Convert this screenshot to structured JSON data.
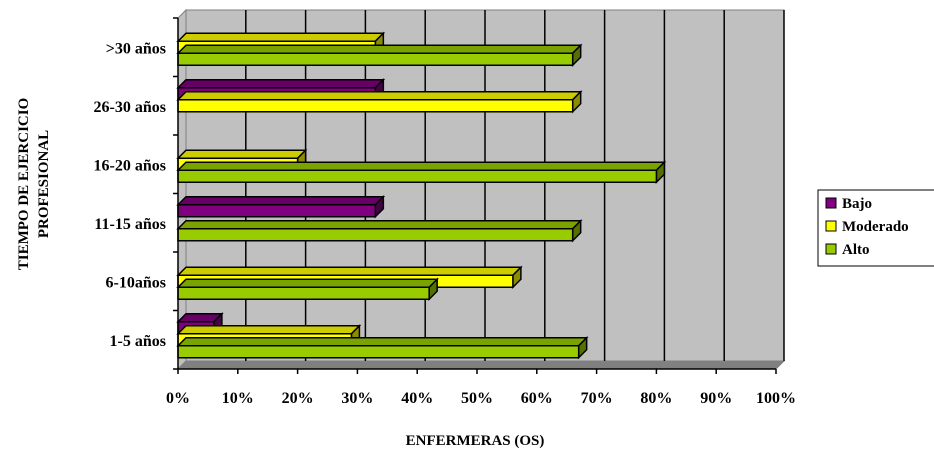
{
  "chart_data": {
    "type": "bar",
    "orientation": "horizontal",
    "three_d": true,
    "categories": [
      "1-5 años",
      "6-10años",
      "11-15 años",
      "16-20 años",
      "26-30 años",
      ">30 años"
    ],
    "series": [
      {
        "name": "Bajo",
        "color": "#800080",
        "values": [
          6,
          0,
          33,
          0,
          33,
          0
        ]
      },
      {
        "name": "Moderado",
        "color": "#ffff00",
        "values": [
          29,
          56,
          0,
          20,
          66,
          33
        ]
      },
      {
        "name": "Alto",
        "color": "#99cc00",
        "values": [
          67,
          42,
          66,
          80,
          0,
          66
        ]
      }
    ],
    "xlabel": "ENFERMERAS (OS)",
    "ylabel": [
      "TIEMPO DE EJERCICIO",
      "PROFESIONAL"
    ],
    "xlim": [
      0,
      100
    ],
    "x_tick_labels": [
      "0%",
      "10%",
      "20%",
      "30%",
      "40%",
      "50%",
      "60%",
      "70%",
      "80%",
      "90%",
      "100%"
    ],
    "grid": true,
    "legend_position": "right",
    "plot_background": "#c0c0c0"
  }
}
